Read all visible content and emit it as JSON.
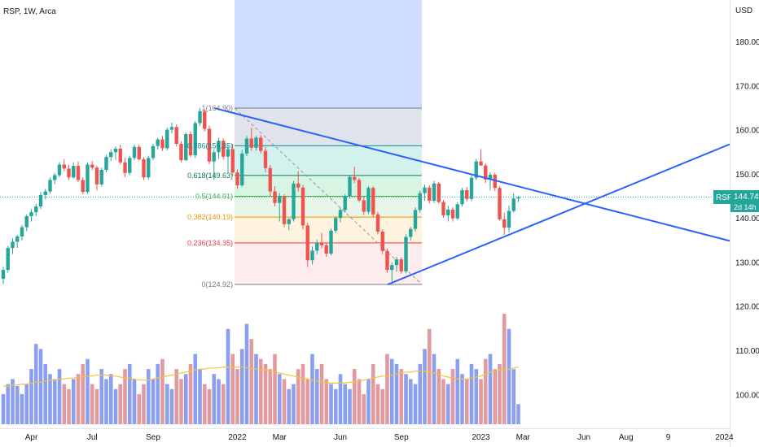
{
  "header": {
    "symbol_line": "RSP, 1W, Arca"
  },
  "axis": {
    "currency": "USD"
  },
  "price_tag": {
    "symbol": "RSP",
    "price": "144.74",
    "countdown": "2d 14h"
  },
  "chart_data": {
    "type": "candlestick",
    "y_axis": {
      "range": [
        95,
        191
      ],
      "ticks": [
        100,
        110,
        120,
        130,
        140,
        150,
        160,
        170,
        180
      ],
      "tick_labels": [
        "100.00",
        "110.00",
        "120.00",
        "130.00",
        "140.00",
        "150.00",
        "160.00",
        "170.00",
        "180.00"
      ]
    },
    "x_axis": {
      "ticks": [
        {
          "week": 6,
          "label": "Apr"
        },
        {
          "week": 19,
          "label": "Jul"
        },
        {
          "week": 32,
          "label": "Sep"
        },
        {
          "week": 50,
          "label": "2022"
        },
        {
          "week": 59,
          "label": "Mar"
        },
        {
          "week": 72,
          "label": "Jun"
        },
        {
          "week": 85,
          "label": "Sep"
        },
        {
          "week": 102,
          "label": "2023"
        },
        {
          "week": 111,
          "label": "Mar"
        },
        {
          "week": 124,
          "label": "Jun"
        },
        {
          "week": 133,
          "label": "Aug"
        },
        {
          "week": 142,
          "label": "9"
        },
        {
          "week": 154,
          "label": "2024"
        }
      ]
    },
    "candles": [
      [
        126.2,
        128.9,
        125.0,
        128.2
      ],
      [
        128.2,
        133.6,
        127.6,
        133.2
      ],
      [
        133.2,
        135.4,
        131.8,
        134.6
      ],
      [
        134.6,
        136.2,
        133.2,
        135.8
      ],
      [
        135.8,
        138.4,
        134.9,
        137.9
      ],
      [
        137.9,
        140.8,
        137.0,
        140.4
      ],
      [
        140.4,
        142.0,
        139.2,
        141.3
      ],
      [
        141.3,
        143.2,
        140.4,
        142.6
      ],
      [
        142.6,
        145.8,
        142.0,
        145.2
      ],
      [
        145.2,
        146.6,
        144.2,
        146.0
      ],
      [
        146.0,
        149.1,
        145.5,
        148.6
      ],
      [
        148.6,
        150.2,
        147.6,
        149.7
      ],
      [
        149.7,
        152.6,
        149.2,
        152.1
      ],
      [
        152.1,
        153.4,
        150.6,
        151.2
      ],
      [
        151.2,
        152.0,
        148.6,
        149.2
      ],
      [
        149.2,
        152.6,
        148.9,
        151.8
      ],
      [
        151.8,
        152.8,
        148.1,
        148.6
      ],
      [
        148.6,
        149.2,
        145.4,
        145.9
      ],
      [
        145.9,
        152.6,
        145.5,
        152.1
      ],
      [
        152.1,
        152.9,
        150.8,
        151.4
      ],
      [
        151.4,
        151.8,
        146.2,
        147.6
      ],
      [
        147.6,
        151.4,
        147.1,
        150.9
      ],
      [
        150.9,
        154.3,
        150.4,
        153.8
      ],
      [
        153.8,
        155.6,
        152.9,
        154.9
      ],
      [
        154.9,
        156.2,
        153.2,
        155.7
      ],
      [
        155.7,
        156.6,
        152.1,
        152.6
      ],
      [
        152.6,
        153.6,
        149.3,
        150.2
      ],
      [
        150.2,
        154.1,
        149.7,
        153.6
      ],
      [
        153.6,
        156.6,
        153.1,
        156.1
      ],
      [
        156.1,
        156.6,
        152.9,
        153.3
      ],
      [
        153.3,
        153.8,
        148.6,
        149.2
      ],
      [
        149.2,
        154.1,
        148.7,
        153.6
      ],
      [
        153.6,
        156.8,
        153.1,
        156.3
      ],
      [
        156.3,
        158.2,
        155.5,
        157.8
      ],
      [
        157.8,
        158.6,
        155.2,
        155.8
      ],
      [
        155.8,
        160.5,
        155.3,
        160.0
      ],
      [
        160.0,
        161.6,
        159.2,
        160.6
      ],
      [
        160.6,
        161.2,
        156.2,
        156.8
      ],
      [
        156.8,
        157.4,
        152.6,
        153.1
      ],
      [
        153.1,
        159.4,
        152.9,
        159.0
      ],
      [
        159.0,
        159.6,
        153.8,
        154.2
      ],
      [
        154.2,
        162.0,
        153.6,
        161.5
      ],
      [
        161.5,
        164.9,
        160.9,
        164.2
      ],
      [
        164.2,
        164.6,
        159.6,
        160.2
      ],
      [
        160.2,
        161.0,
        152.2,
        152.8
      ],
      [
        152.8,
        155.6,
        148.6,
        154.9
      ],
      [
        154.9,
        158.2,
        153.4,
        157.5
      ],
      [
        157.5,
        158.1,
        153.2,
        153.9
      ],
      [
        153.9,
        156.4,
        150.2,
        155.6
      ],
      [
        155.6,
        156.8,
        149.6,
        150.3
      ],
      [
        150.3,
        151.0,
        146.6,
        147.4
      ],
      [
        147.4,
        155.4,
        147.0,
        154.6
      ],
      [
        154.6,
        158.6,
        154.0,
        158.0
      ],
      [
        158.0,
        160.4,
        155.2,
        155.9
      ],
      [
        155.9,
        158.6,
        155.3,
        158.2
      ],
      [
        158.2,
        158.8,
        154.6,
        155.2
      ],
      [
        155.2,
        156.0,
        150.4,
        151.3
      ],
      [
        151.3,
        152.0,
        144.9,
        146.0
      ],
      [
        146.0,
        147.2,
        142.6,
        143.4
      ],
      [
        143.4,
        145.6,
        139.2,
        144.8
      ],
      [
        144.8,
        145.4,
        137.9,
        138.6
      ],
      [
        138.6,
        140.0,
        137.2,
        139.7
      ],
      [
        139.7,
        148.4,
        139.2,
        147.8
      ],
      [
        147.8,
        150.6,
        146.0,
        146.9
      ],
      [
        146.9,
        147.5,
        137.4,
        138.3
      ],
      [
        138.3,
        138.9,
        128.9,
        130.4
      ],
      [
        130.4,
        133.5,
        129.4,
        132.6
      ],
      [
        132.6,
        135.0,
        131.8,
        134.4
      ],
      [
        134.4,
        136.6,
        133.1,
        133.8
      ],
      [
        133.8,
        134.4,
        131.2,
        131.9
      ],
      [
        131.9,
        137.6,
        131.5,
        137.1
      ],
      [
        137.1,
        140.4,
        136.6,
        140.0
      ],
      [
        140.0,
        142.3,
        139.0,
        141.8
      ],
      [
        141.8,
        145.4,
        141.2,
        144.9
      ],
      [
        144.9,
        149.8,
        144.4,
        149.3
      ],
      [
        149.3,
        151.6,
        147.9,
        148.6
      ],
      [
        148.6,
        149.1,
        143.6,
        144.0
      ],
      [
        144.0,
        144.8,
        140.7,
        141.4
      ],
      [
        141.4,
        147.2,
        140.9,
        146.8
      ],
      [
        146.8,
        147.2,
        140.2,
        140.8
      ],
      [
        140.8,
        141.4,
        136.3,
        136.9
      ],
      [
        136.9,
        137.4,
        131.8,
        132.5
      ],
      [
        132.5,
        133.0,
        127.6,
        128.2
      ],
      [
        128.2,
        129.9,
        125.6,
        129.3
      ],
      [
        129.3,
        131.2,
        127.8,
        130.6
      ],
      [
        130.6,
        131.1,
        127.4,
        127.9
      ],
      [
        127.9,
        136.3,
        127.4,
        135.7
      ],
      [
        135.7,
        138.0,
        134.9,
        137.5
      ],
      [
        137.5,
        142.4,
        136.9,
        141.8
      ],
      [
        141.8,
        146.2,
        141.2,
        145.6
      ],
      [
        145.6,
        147.6,
        143.9,
        146.9
      ],
      [
        146.9,
        147.4,
        143.3,
        143.9
      ],
      [
        143.9,
        148.4,
        143.4,
        147.8
      ],
      [
        147.8,
        148.2,
        143.2,
        143.6
      ],
      [
        143.6,
        144.1,
        140.0,
        140.6
      ],
      [
        140.6,
        142.8,
        139.2,
        141.9
      ],
      [
        141.9,
        142.4,
        139.2,
        139.9
      ],
      [
        139.9,
        143.6,
        139.5,
        143.1
      ],
      [
        143.1,
        146.8,
        142.6,
        146.3
      ],
      [
        146.3,
        147.0,
        143.7,
        144.3
      ],
      [
        144.3,
        149.6,
        143.8,
        149.1
      ],
      [
        149.1,
        153.4,
        148.6,
        152.8
      ],
      [
        152.8,
        155.6,
        151.8,
        151.9
      ],
      [
        151.9,
        152.4,
        147.9,
        148.7
      ],
      [
        148.7,
        150.4,
        146.2,
        149.8
      ],
      [
        149.8,
        150.2,
        146.1,
        146.8
      ],
      [
        146.8,
        147.2,
        139.4,
        139.7
      ],
      [
        139.7,
        141.2,
        136.2,
        137.8
      ],
      [
        137.8,
        142.8,
        136.8,
        141.6
      ],
      [
        141.6,
        145.6,
        141.2,
        144.4
      ],
      [
        144.4,
        145.0,
        143.6,
        144.74
      ]
    ],
    "volume_scale": {
      "max_units": 100,
      "values": [
        30,
        40,
        45,
        38,
        30,
        40,
        55,
        80,
        75,
        60,
        50,
        45,
        55,
        40,
        35,
        45,
        50,
        60,
        65,
        40,
        35,
        55,
        45,
        50,
        35,
        40,
        55,
        60,
        45,
        30,
        40,
        55,
        45,
        60,
        65,
        40,
        35,
        55,
        45,
        50,
        60,
        70,
        55,
        40,
        35,
        50,
        45,
        40,
        95,
        70,
        55,
        75,
        100,
        85,
        70,
        65,
        60,
        55,
        70,
        50,
        45,
        35,
        40,
        55,
        60,
        45,
        70,
        55,
        60,
        45,
        40,
        35,
        50,
        40,
        35,
        55,
        45,
        30,
        45,
        60,
        40,
        35,
        70,
        65,
        60,
        55,
        50,
        45,
        40,
        60,
        75,
        95,
        70,
        55,
        45,
        40,
        55,
        65,
        50,
        45,
        60,
        55,
        45,
        65,
        70,
        55,
        60,
        110,
        95,
        55,
        20
      ]
    },
    "volume_ma": [
      38,
      38,
      39,
      39,
      40,
      40,
      41,
      42,
      42,
      43,
      44,
      44,
      45,
      45,
      46,
      46,
      47,
      47,
      48,
      48,
      49,
      49,
      49,
      48,
      48,
      47,
      46,
      46,
      45,
      44,
      44,
      44,
      45,
      46,
      47,
      48,
      49,
      50,
      51,
      52,
      53,
      54,
      55,
      55,
      56,
      56,
      56,
      57,
      57,
      57,
      57,
      57,
      56,
      56,
      55,
      54,
      54,
      53,
      52,
      51,
      50,
      49,
      48,
      47,
      46,
      45,
      44,
      43,
      42,
      41,
      41,
      41,
      41,
      41,
      42,
      42,
      43,
      44,
      45,
      46,
      47,
      48,
      48,
      49,
      50,
      51,
      52,
      52,
      53,
      53,
      53,
      52,
      51,
      50,
      48,
      47,
      46,
      45,
      45,
      45,
      46,
      47,
      48,
      50,
      52,
      53,
      54,
      55,
      55,
      56,
      57
    ],
    "fib_levels": [
      {
        "ratio": "1",
        "price": 164.9,
        "label": "1(164.90)",
        "color": "#787b86",
        "fill": "#e0e3eb"
      },
      {
        "ratio": "0.786",
        "price": 156.35,
        "label": "0.786(156.35)",
        "color": "#0b8d8d",
        "fill": "#d3f1ed"
      },
      {
        "ratio": "0.618",
        "price": 149.63,
        "label": "0.618(149.63)",
        "color": "#0b7a56",
        "fill": "#d8f5e4"
      },
      {
        "ratio": "0.5",
        "price": 144.91,
        "label": "0.5(144.91)",
        "color": "#4caf50",
        "fill": "#e8f5e9"
      },
      {
        "ratio": "0.382",
        "price": 140.19,
        "label": "0.382(140.19)",
        "color": "#e69500",
        "fill": "#fff3e0"
      },
      {
        "ratio": "0.236",
        "price": 134.35,
        "label": "0.236(134.35)",
        "color": "#f23645",
        "fill": "#fdecec"
      },
      {
        "ratio": "0",
        "price": 124.92,
        "label": "0(124.92)",
        "color": "#787b86",
        "fill": "#f8d7d9"
      }
    ],
    "trendlines": [
      {
        "name": "upper-resistance",
        "from": [
          43,
          164.9
        ],
        "to": [
          158,
          134.8
        ]
      },
      {
        "name": "lower-support",
        "from": [
          80,
          124.9
        ],
        "to": [
          158,
          156.7
        ]
      }
    ],
    "colors": {
      "up": "#26a69a",
      "down": "#ef5350",
      "vol_up": "#8b9ff0",
      "vol_down": "#e39a9f",
      "trend": "#2962ff",
      "ma": "#f5c242",
      "accent_tag": "#26a69a",
      "blue_zone": "#d0dcfd"
    }
  }
}
